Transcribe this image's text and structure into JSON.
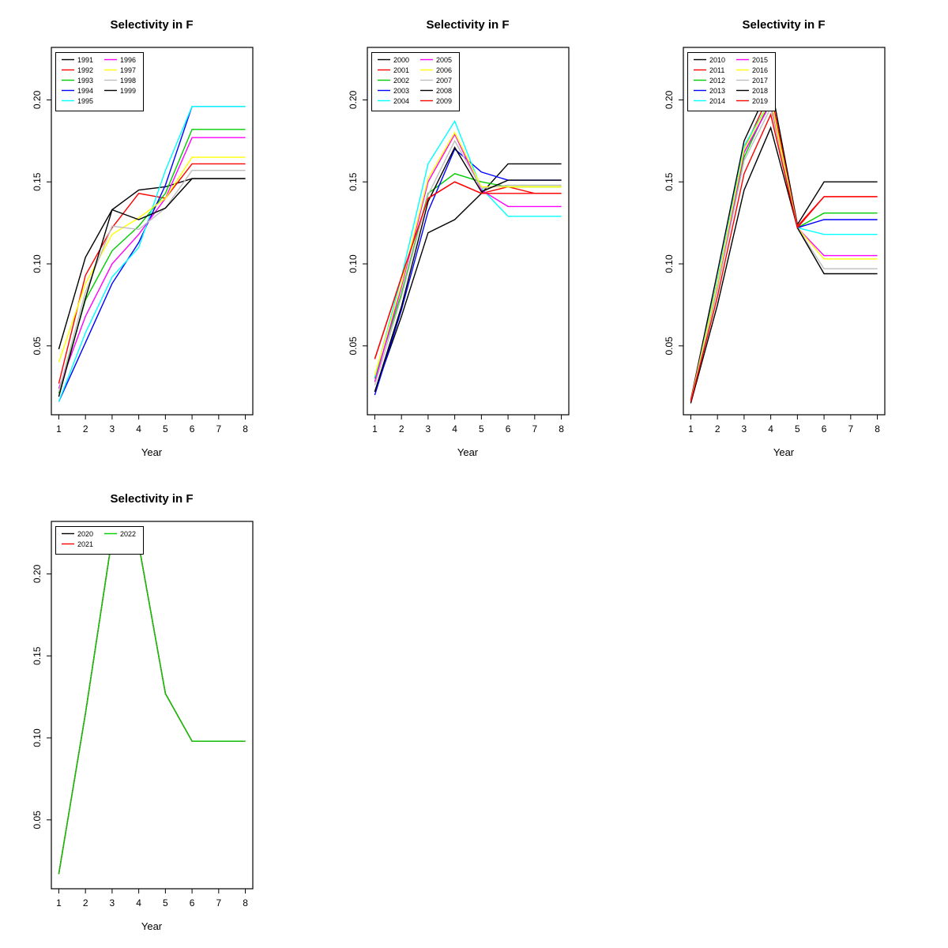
{
  "chart_data": [
    {
      "type": "line",
      "title": "Selectivity in F",
      "xlabel": "Year",
      "x": [
        1,
        2,
        3,
        4,
        5,
        6,
        7,
        8
      ],
      "ylim": [
        0.008,
        0.232
      ],
      "yticks": [
        0.05,
        0.1,
        0.15,
        0.2
      ],
      "ytick_labels": [
        "0.05",
        "0.10",
        "0.15",
        "0.20"
      ],
      "legend_position": "topleft",
      "legend_columns": 2,
      "series": [
        {
          "name": "1991",
          "color": "#000000",
          "values": [
            0.048,
            0.104,
            0.133,
            0.145,
            0.147,
            0.152,
            0.152,
            0.152
          ]
        },
        {
          "name": "1992",
          "color": "#FF0000",
          "values": [
            0.027,
            0.093,
            0.122,
            0.143,
            0.14,
            0.161,
            0.161,
            0.161
          ]
        },
        {
          "name": "1993",
          "color": "#00CD00",
          "values": [
            0.021,
            0.078,
            0.108,
            0.123,
            0.143,
            0.182,
            0.182,
            0.182
          ]
        },
        {
          "name": "1994",
          "color": "#0000FF",
          "values": [
            0.016,
            0.052,
            0.088,
            0.113,
            0.148,
            0.196,
            0.196,
            0.196
          ]
        },
        {
          "name": "1995",
          "color": "#00FFFF",
          "values": [
            0.016,
            0.058,
            0.092,
            0.11,
            0.157,
            0.196,
            0.196,
            0.196
          ]
        },
        {
          "name": "1996",
          "color": "#FF00FF",
          "values": [
            0.024,
            0.068,
            0.1,
            0.118,
            0.14,
            0.177,
            0.177,
            0.177
          ]
        },
        {
          "name": "1997",
          "color": "#FFFF00",
          "values": [
            0.04,
            0.088,
            0.118,
            0.128,
            0.14,
            0.165,
            0.165,
            0.165
          ]
        },
        {
          "name": "1998",
          "color": "#BEBEBE",
          "values": [
            0.022,
            0.083,
            0.123,
            0.121,
            0.134,
            0.157,
            0.157,
            0.157
          ]
        },
        {
          "name": "1999",
          "color": "#000000",
          "values": [
            0.019,
            0.079,
            0.133,
            0.127,
            0.134,
            0.152,
            0.152,
            0.152
          ]
        }
      ]
    },
    {
      "type": "line",
      "title": "Selectivity in F",
      "xlabel": "Year",
      "x": [
        1,
        2,
        3,
        4,
        5,
        6,
        7,
        8
      ],
      "ylim": [
        0.008,
        0.232
      ],
      "yticks": [
        0.05,
        0.1,
        0.15,
        0.2
      ],
      "ytick_labels": [
        "0.05",
        "0.10",
        "0.15",
        "0.20"
      ],
      "legend_position": "topleft",
      "legend_columns": 2,
      "series": [
        {
          "name": "2000",
          "color": "#000000",
          "values": [
            0.022,
            0.068,
            0.119,
            0.127,
            0.143,
            0.161,
            0.161,
            0.161
          ]
        },
        {
          "name": "2001",
          "color": "#FF0000",
          "values": [
            0.042,
            0.092,
            0.14,
            0.15,
            0.143,
            0.147,
            0.143,
            0.143
          ]
        },
        {
          "name": "2002",
          "color": "#00CD00",
          "values": [
            0.03,
            0.082,
            0.143,
            0.155,
            0.15,
            0.147,
            0.147,
            0.147
          ]
        },
        {
          "name": "2003",
          "color": "#0000FF",
          "values": [
            0.02,
            0.072,
            0.132,
            0.17,
            0.156,
            0.151,
            0.151,
            0.151
          ]
        },
        {
          "name": "2004",
          "color": "#00FFFF",
          "values": [
            0.031,
            0.092,
            0.161,
            0.187,
            0.146,
            0.129,
            0.129,
            0.129
          ]
        },
        {
          "name": "2005",
          "color": "#FF00FF",
          "values": [
            0.028,
            0.086,
            0.15,
            0.179,
            0.145,
            0.135,
            0.135,
            0.135
          ]
        },
        {
          "name": "2006",
          "color": "#FFFF00",
          "values": [
            0.032,
            0.088,
            0.152,
            0.18,
            0.147,
            0.147,
            0.147,
            0.147
          ]
        },
        {
          "name": "2007",
          "color": "#BEBEBE",
          "values": [
            0.026,
            0.08,
            0.142,
            0.175,
            0.146,
            0.148,
            0.148,
            0.148
          ]
        },
        {
          "name": "2008",
          "color": "#000000",
          "values": [
            0.022,
            0.074,
            0.138,
            0.171,
            0.144,
            0.151,
            0.151,
            0.151
          ]
        },
        {
          "name": "2009",
          "color": "#FF0000",
          "values": [
            0.042,
            0.092,
            0.14,
            0.15,
            0.143,
            0.143,
            0.143,
            0.143
          ]
        }
      ]
    },
    {
      "type": "line",
      "title": "Selectivity in F",
      "xlabel": "Year",
      "x": [
        1,
        2,
        3,
        4,
        5,
        6,
        7,
        8
      ],
      "ylim": [
        0.008,
        0.232
      ],
      "yticks": [
        0.05,
        0.1,
        0.15,
        0.2
      ],
      "ytick_labels": [
        "0.05",
        "0.10",
        "0.15",
        "0.20"
      ],
      "legend_position": "topleft",
      "legend_columns": 2,
      "series": [
        {
          "name": "2010",
          "color": "#000000",
          "values": [
            0.017,
            0.095,
            0.175,
            0.21,
            0.124,
            0.15,
            0.15,
            0.15
          ]
        },
        {
          "name": "2011",
          "color": "#FF0000",
          "values": [
            0.017,
            0.09,
            0.17,
            0.205,
            0.123,
            0.141,
            0.141,
            0.141
          ]
        },
        {
          "name": "2012",
          "color": "#00CD00",
          "values": [
            0.016,
            0.085,
            0.165,
            0.2,
            0.122,
            0.131,
            0.131,
            0.131
          ]
        },
        {
          "name": "2013",
          "color": "#0000FF",
          "values": [
            0.016,
            0.086,
            0.168,
            0.198,
            0.122,
            0.127,
            0.127,
            0.127
          ]
        },
        {
          "name": "2014",
          "color": "#00FFFF",
          "values": [
            0.016,
            0.09,
            0.172,
            0.2,
            0.122,
            0.118,
            0.118,
            0.118
          ]
        },
        {
          "name": "2015",
          "color": "#FF00FF",
          "values": [
            0.016,
            0.086,
            0.168,
            0.198,
            0.122,
            0.105,
            0.105,
            0.105
          ]
        },
        {
          "name": "2016",
          "color": "#FFFF00",
          "values": [
            0.016,
            0.088,
            0.17,
            0.2,
            0.122,
            0.103,
            0.103,
            0.103
          ]
        },
        {
          "name": "2017",
          "color": "#BEBEBE",
          "values": [
            0.016,
            0.084,
            0.163,
            0.195,
            0.122,
            0.097,
            0.097,
            0.097
          ]
        },
        {
          "name": "2018",
          "color": "#000000",
          "values": [
            0.015,
            0.075,
            0.145,
            0.183,
            0.122,
            0.094,
            0.094,
            0.094
          ]
        },
        {
          "name": "2019",
          "color": "#FF0000",
          "values": [
            0.016,
            0.08,
            0.155,
            0.191,
            0.122,
            0.141,
            0.141,
            0.141
          ]
        }
      ]
    },
    {
      "type": "line",
      "title": "Selectivity in F",
      "xlabel": "Year",
      "x": [
        1,
        2,
        3,
        4,
        5,
        6,
        7,
        8
      ],
      "ylim": [
        0.008,
        0.232
      ],
      "yticks": [
        0.05,
        0.1,
        0.15,
        0.2
      ],
      "ytick_labels": [
        "0.05",
        "0.10",
        "0.15",
        "0.20"
      ],
      "legend_position": "topleft",
      "legend_columns": 2,
      "series": [
        {
          "name": "2020",
          "color": "#000000",
          "values": [
            0.017,
            0.115,
            0.222,
            0.218,
            0.127,
            0.098,
            0.098,
            0.098
          ]
        },
        {
          "name": "2021",
          "color": "#FF0000",
          "values": [
            0.017,
            0.115,
            0.222,
            0.218,
            0.127,
            0.098,
            0.098,
            0.098
          ]
        },
        {
          "name": "2022",
          "color": "#00CD00",
          "values": [
            0.017,
            0.115,
            0.222,
            0.218,
            0.127,
            0.098,
            0.098,
            0.098
          ]
        }
      ]
    }
  ]
}
